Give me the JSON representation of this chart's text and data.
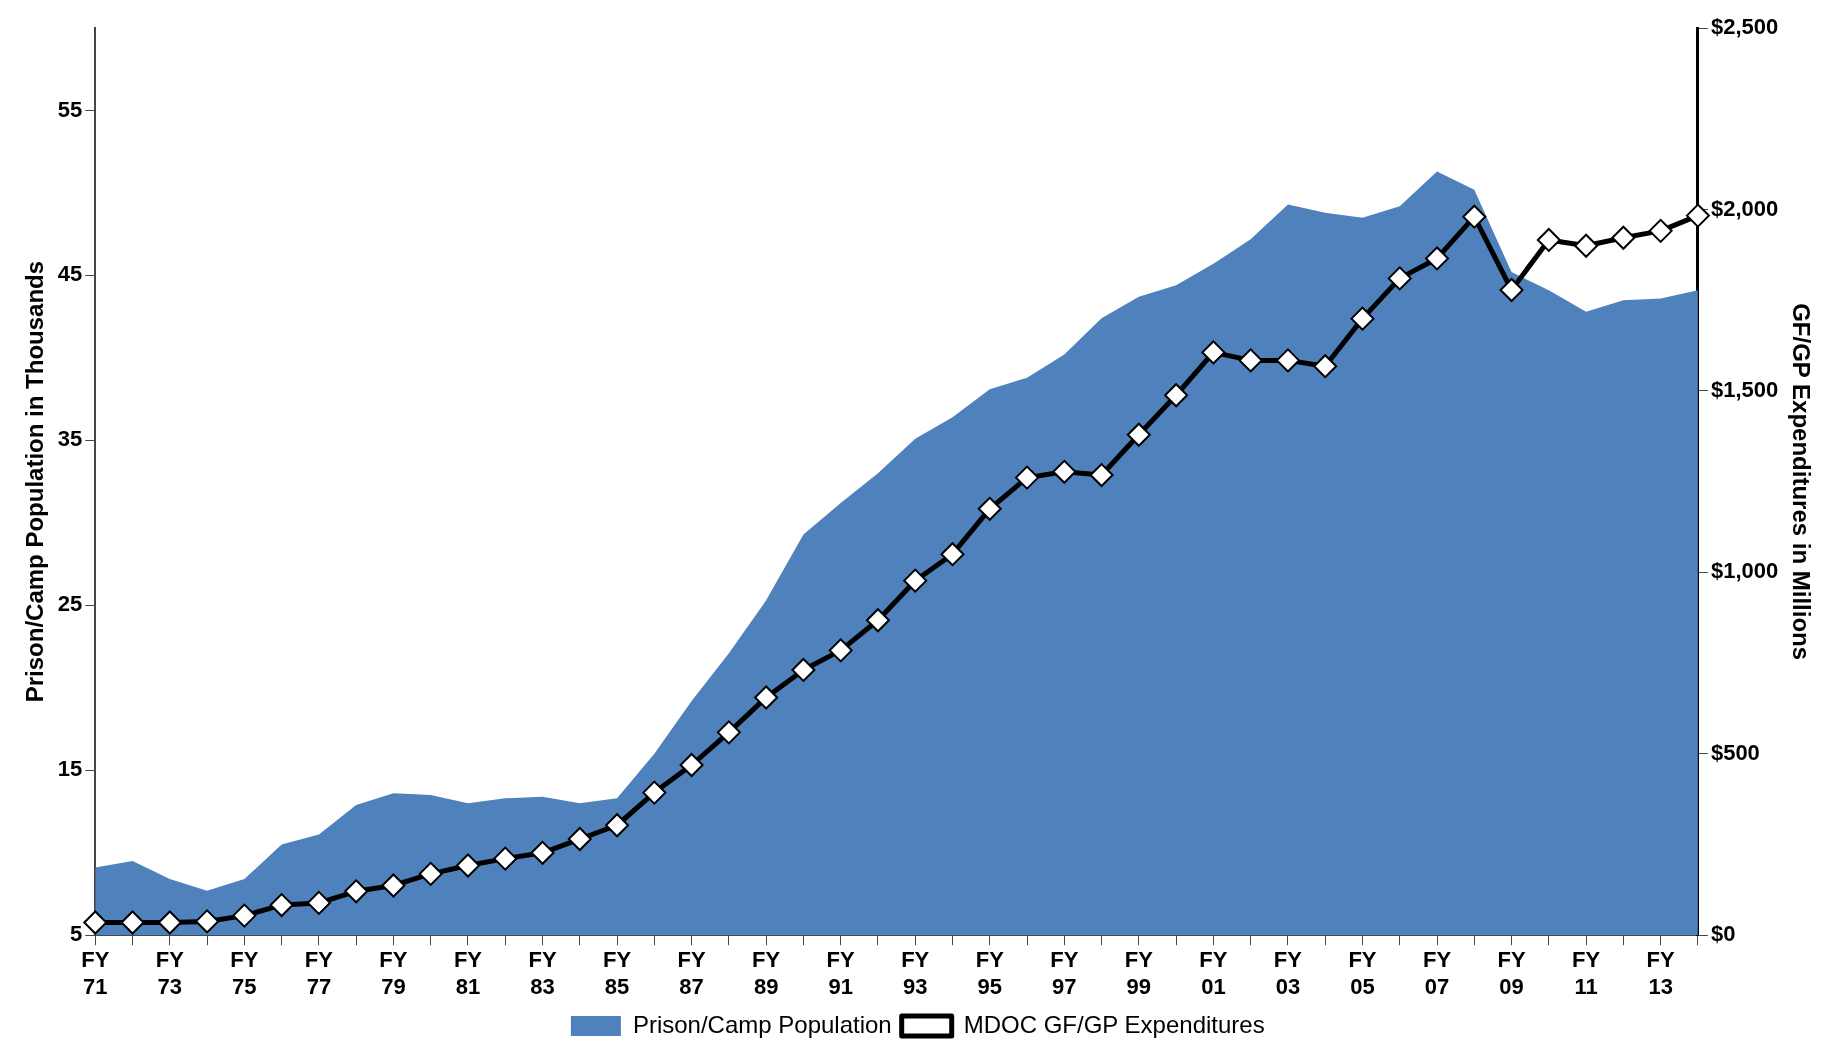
{
  "chart_data": {
    "type": "area",
    "categories": [
      "FY 71",
      null,
      "FY 73",
      null,
      "FY 75",
      null,
      "FY 77",
      null,
      "FY 79",
      null,
      "FY 81",
      null,
      "FY 83",
      null,
      "FY 85",
      null,
      "FY 87",
      null,
      "FY 89",
      null,
      "FY 91",
      null,
      "FY 93",
      null,
      "FY 95",
      null,
      "FY 97",
      null,
      "FY 99",
      null,
      "FY 01",
      null,
      "FY 03",
      null,
      "FY 05",
      null,
      "FY 07",
      null,
      "FY 09",
      null,
      "FY 11",
      null,
      "FY 13",
      null
    ],
    "series": [
      {
        "name": "Prison/Camp Population",
        "color": "#4f81bd",
        "values": [
          9.1,
          9.5,
          8.4,
          7.7,
          8.4,
          10.5,
          11.1,
          12.9,
          13.6,
          13.5,
          13.0,
          13.3,
          13.4,
          13.0,
          13.3,
          16.0,
          19.2,
          22.1,
          25.3,
          29.3,
          31.2,
          33.0,
          35.1,
          36.4,
          38.1,
          38.8,
          40.2,
          42.4,
          43.7,
          44.4,
          45.7,
          47.2,
          49.3,
          48.8,
          48.5,
          49.2,
          51.3,
          50.2,
          45.2,
          44.1,
          42.8,
          43.5,
          43.6,
          44.1
        ]
      },
      {
        "name": "MDOC GF/GP Expenditures",
        "type": "line",
        "axis": "y2",
        "color": "#000000",
        "marker": "diamond",
        "values": [
          35,
          35,
          35,
          38,
          54,
          83,
          89,
          121,
          137,
          169,
          192,
          211,
          227,
          265,
          303,
          393,
          469,
          559,
          655,
          731,
          785,
          868,
          977,
          1050,
          1175,
          1261,
          1277,
          1268,
          1379,
          1488,
          1606,
          1584,
          1584,
          1568,
          1699,
          1810,
          1865,
          1980,
          1778,
          1916,
          1900,
          1922,
          1941,
          1983
        ]
      }
    ],
    "ylabel": "Prison/Camp Population in Thousands",
    "y2label": "GF/GP Expenditures in Millions",
    "ylim": [
      5,
      60
    ],
    "yticks": [
      5,
      15,
      25,
      35,
      45,
      55
    ],
    "y2lim": [
      0,
      2500
    ],
    "y2ticks": [
      {
        "value": 0,
        "label": "$0"
      },
      {
        "value": 500,
        "label": "$500"
      },
      {
        "value": 1000,
        "label": "$1,000"
      },
      {
        "value": 1500,
        "label": "$1,500"
      },
      {
        "value": 2000,
        "label": "$2,000"
      },
      {
        "value": 2500,
        "label": "$2,500"
      }
    ],
    "legend": "bottom",
    "grid": false
  }
}
